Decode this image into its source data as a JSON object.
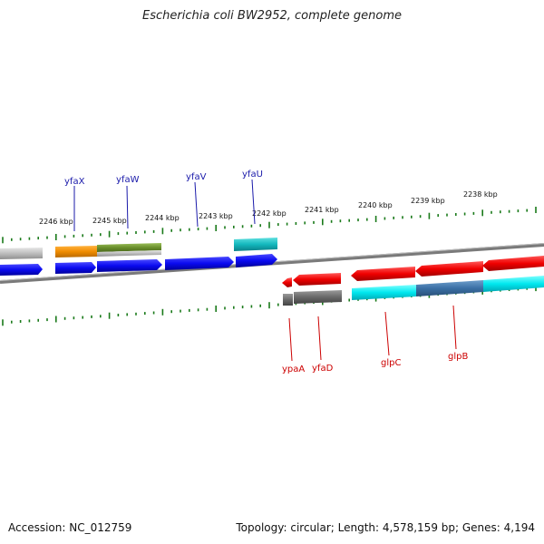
{
  "title": "Escherichia coli BW2952, complete genome",
  "accession": "Accession: NC_012759",
  "summary": "Topology: circular; Length: 4,578,159 bp; Genes: 4,194",
  "colors": {
    "tick": "#1a7a1a",
    "backbone": "#7a7a7a",
    "forward_label": "#1a1aaa",
    "reverse_label": "#cc0000"
  },
  "coordinate_labels": [
    "2238 kbp",
    "2239 kbp",
    "2240 kbp",
    "2241 kbp",
    "2242 kbp",
    "2243 kbp",
    "2244 kbp",
    "2245 kbp",
    "2246 kbp"
  ],
  "forward_gene_labels": [
    "yfaX",
    "yfaW",
    "yfaV",
    "yfaU"
  ],
  "reverse_gene_labels": [
    "ypaA",
    "yfaD",
    "glpC",
    "glpB"
  ]
}
